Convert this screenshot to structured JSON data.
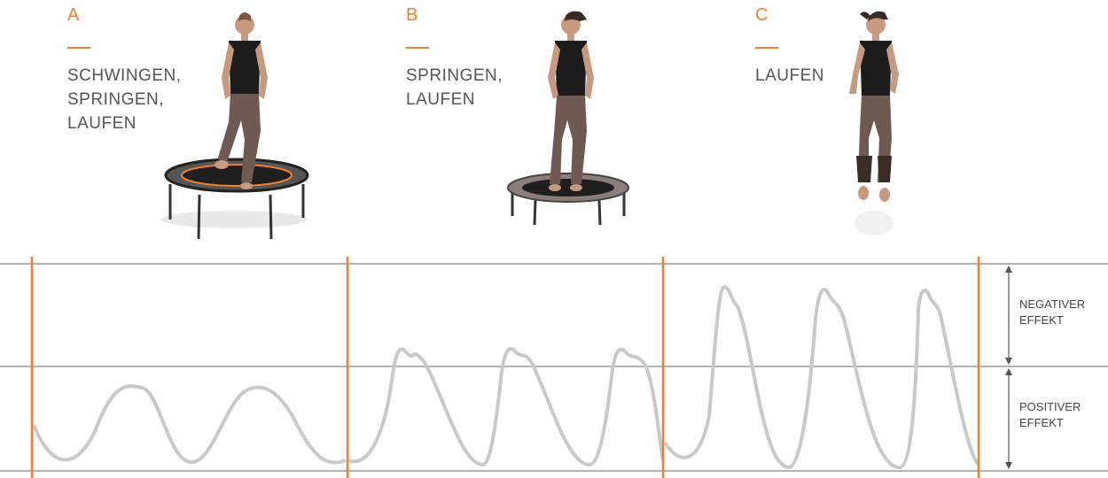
{
  "colors": {
    "accent": "#f07f2e",
    "rule": "#9a9a9a",
    "wave": "#c9c9c9",
    "wave_dark": "#a9a9a9",
    "text": "#555555"
  },
  "sections": [
    {
      "letter": "A",
      "label": "SCHWINGEN,\nSPRINGEN,\nLAUFEN",
      "image": "woman-on-large-trampoline"
    },
    {
      "letter": "B",
      "label": "SPRINGEN,\nLAUFEN",
      "image": "woman-on-small-trampoline"
    },
    {
      "letter": "C",
      "label": "LAUFEN",
      "image": "woman-running"
    }
  ],
  "effects": {
    "negative": [
      "NEGATIVER",
      "EFFEKT"
    ],
    "positive": [
      "POSITIVER",
      "EFFEKT"
    ]
  },
  "waves": [
    {
      "segment": "A",
      "shape": "sine",
      "peaks": 2,
      "level": "positive"
    },
    {
      "segment": "B",
      "shape": "spike",
      "peaks": 3,
      "level": "threshold"
    },
    {
      "segment": "C",
      "shape": "spike",
      "peaks": 3,
      "level": "negative"
    }
  ]
}
